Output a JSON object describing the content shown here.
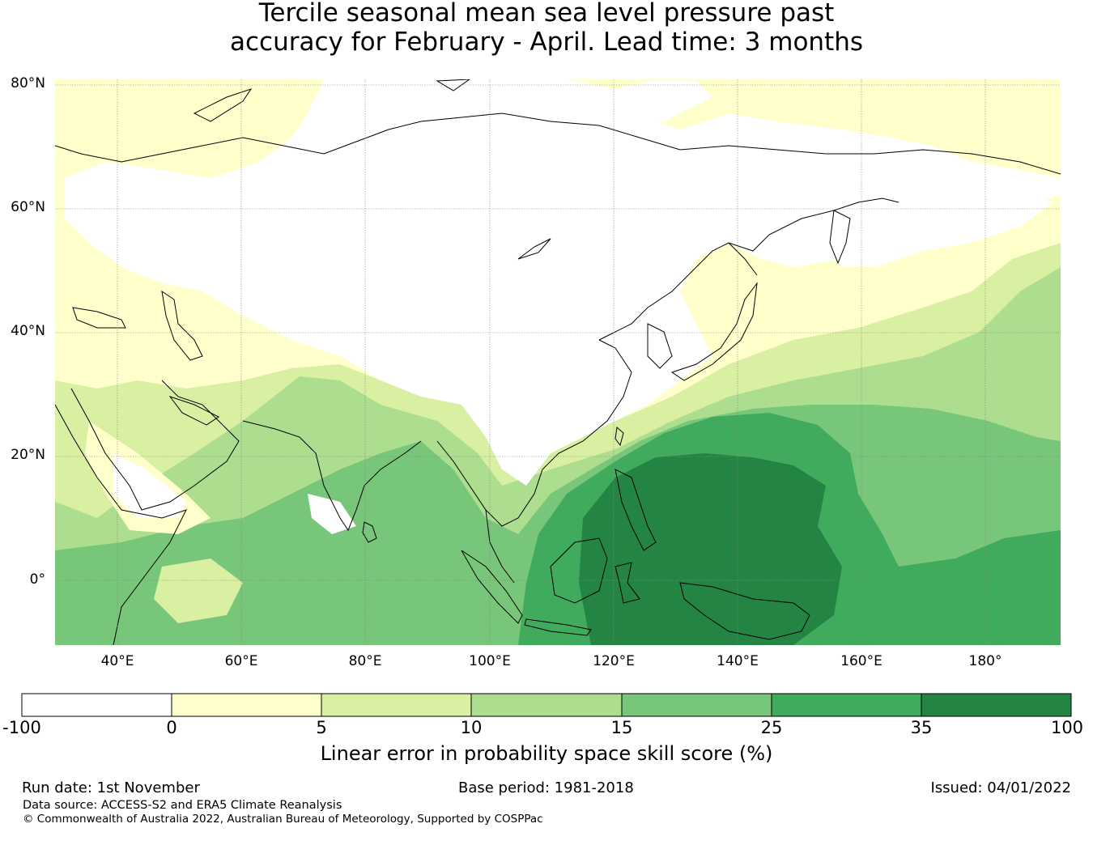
{
  "title": {
    "line1": "Tercile seasonal mean sea level pressure past",
    "line2": "accuracy for February - April. Lead time: 3 months"
  },
  "map": {
    "lat_labels": [
      "80°N",
      "60°N",
      "40°N",
      "20°N",
      "0°"
    ],
    "lon_labels": [
      "40°E",
      "60°E",
      "80°E",
      "100°E",
      "120°E",
      "140°E",
      "160°E",
      "180°"
    ],
    "extent": {
      "lon_min": 30,
      "lon_max": 192,
      "lat_min": -10,
      "lat_max": 80
    },
    "gridlines": true
  },
  "colorbar": {
    "ticks": [
      "-100",
      "0",
      "5",
      "10",
      "15",
      "25",
      "35",
      "100"
    ],
    "colors": [
      "#ffffff",
      "#ffffcc",
      "#d9f0a3",
      "#addd8e",
      "#78c679",
      "#41ab5d",
      "#238443"
    ],
    "label": "Linear error in probability space skill score (%)"
  },
  "footer": {
    "run_date": "Run date: 1st November",
    "base_period": "Base period: 1981-2018",
    "issued": "Issued: 04/01/2022",
    "data_source": "Data source: ACCESS-S2 and ERA5 Climate Reanalysis",
    "copyright": "© Commonwealth of Australia 2022, Australian Bureau of Meteorology, Supported by COSPPac"
  }
}
